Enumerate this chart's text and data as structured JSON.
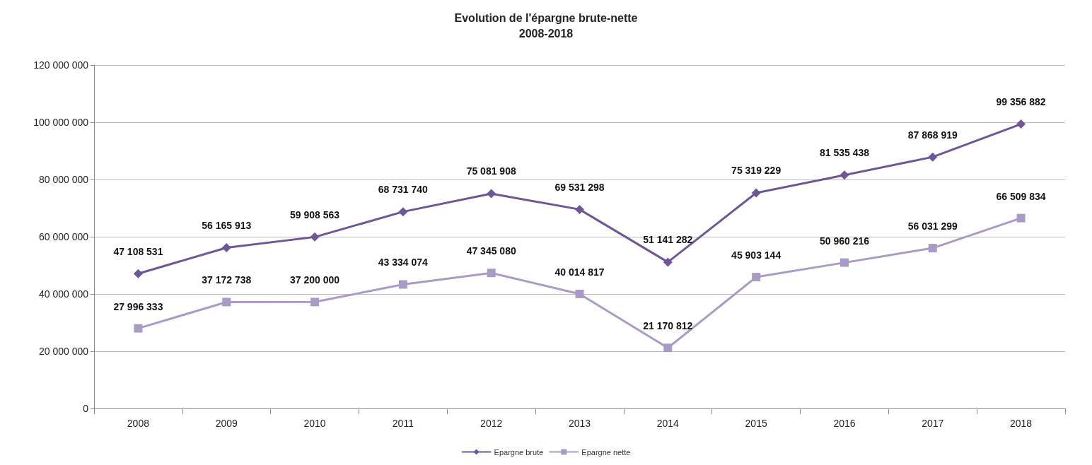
{
  "chart_data": {
    "type": "line",
    "title": "Evolution de l'épargne brute-nette",
    "subtitle": "2008-2018",
    "categories": [
      "2008",
      "2009",
      "2010",
      "2011",
      "2012",
      "2013",
      "2014",
      "2015",
      "2016",
      "2017",
      "2018"
    ],
    "series": [
      {
        "name": "Epargne brute",
        "color": "#6e5797",
        "marker": "diamond",
        "values": [
          47108531,
          56165913,
          59908563,
          68731740,
          75081908,
          69531298,
          51141282,
          75319229,
          81535438,
          87868919,
          99356882
        ],
        "value_labels": [
          "47 108 531",
          "56 165 913",
          "59 908 563",
          "68 731 740",
          "75 081 908",
          "69 531 298",
          "51 141 282",
          "75 319 229",
          "81 535 438",
          "87 868 919",
          "99 356 882"
        ]
      },
      {
        "name": "Epargne nette",
        "color": "#a99bc6",
        "marker": "square",
        "values": [
          27996333,
          37172738,
          37200000,
          43334074,
          47345080,
          40014817,
          21170812,
          45903144,
          50960216,
          56031299,
          66509834
        ],
        "value_labels": [
          "27 996 333",
          "37 172 738",
          "37 200 000",
          "43 334 074",
          "47 345 080",
          "40 014 817",
          "21 170 812",
          "45 903 144",
          "50 960 216",
          "56 031 299",
          "66 509 834"
        ]
      }
    ],
    "ylim": [
      0,
      120000000
    ],
    "yticks": [
      {
        "value": 0,
        "label": "0"
      },
      {
        "value": 20000000,
        "label": "20 000 000"
      },
      {
        "value": 40000000,
        "label": "40 000 000"
      },
      {
        "value": 60000000,
        "label": "60 000 000"
      },
      {
        "value": 80000000,
        "label": "80 000 000"
      },
      {
        "value": 100000000,
        "label": "100 000 000"
      },
      {
        "value": 120000000,
        "label": "120 000 000"
      }
    ],
    "grid": "y",
    "legend": "bottom",
    "line_style": "solid"
  }
}
